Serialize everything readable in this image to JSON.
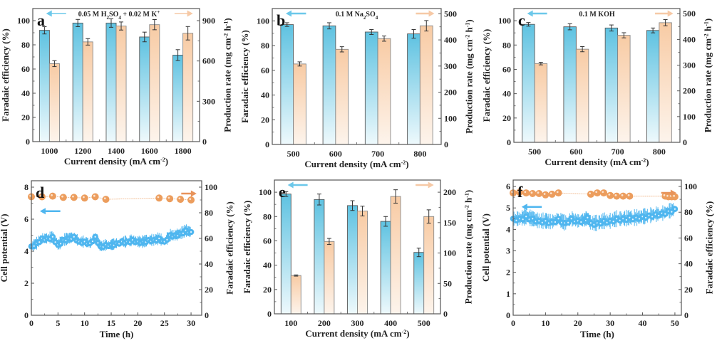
{
  "figure": {
    "colors": {
      "fe_bar_top": "#5ec2e1",
      "fe_bar_bottom": "#eef9fc",
      "pr_bar_top": "#f8cba4",
      "pr_bar_bottom": "#fdf4ec",
      "bar_edge": "#5a5a5a",
      "fe_arrow": "#6cc8ea",
      "pr_arrow": "#f6c9a6",
      "potential_dots": "#4fb6ef",
      "fe_dots": "#ec9d5d",
      "fe_arrow_dark": "#e8935a",
      "potential_arrow": "#4fb6ef"
    }
  },
  "chart_data": [
    {
      "panel": "a",
      "type": "bar",
      "annotation": "0.05 M H2SO4 + 0.02 M K+",
      "annotation_parts": [
        "0.05 M H",
        "2",
        "SO",
        "4",
        " + 0.02 M K",
        "+"
      ],
      "categories": [
        "1000",
        "1200",
        "1400",
        "1600",
        "1800"
      ],
      "xlabel": "Current density (mA cm-2)",
      "xlabel_main": "Current density (mA cm",
      "xlabel_sup": "-2",
      "xlabel_end": ")",
      "ylabel": "Faradaic efficiency (%)",
      "y2label": "Production rate (mg cm-2 h-1)",
      "y2label_parts": [
        "Production rate (mg cm",
        "-2",
        " h",
        "-1",
        ")"
      ],
      "ylim": [
        0,
        110
      ],
      "y2lim": [
        0,
        990
      ],
      "yticks": [
        0,
        20,
        40,
        60,
        80,
        100
      ],
      "y2ticks": [
        0,
        300,
        600,
        900
      ],
      "series": [
        {
          "name": "Faradaic efficiency",
          "axis": "left",
          "values": [
            92,
            98,
            98,
            86.5,
            71.5
          ],
          "errors": [
            3,
            3,
            3.5,
            4,
            4.5
          ]
        },
        {
          "name": "Production rate",
          "axis": "right",
          "values": [
            580,
            742,
            860,
            870,
            806
          ],
          "errors": [
            22,
            24,
            30,
            38,
            50
          ]
        }
      ]
    },
    {
      "panel": "b",
      "type": "bar",
      "annotation": "0.1 M Na2SO4",
      "annotation_parts": [
        "0.1 M Na",
        "2",
        "SO",
        "4",
        "",
        ""
      ],
      "categories": [
        "500",
        "600",
        "700",
        "800"
      ],
      "xlabel": "Current density (mA cm-2)",
      "xlabel_main": "Current density (mA cm",
      "xlabel_sup": "-2",
      "xlabel_end": ")",
      "ylabel": "Faradaic efficiency (%)",
      "y2label": "Production rate (mg cm-2 h-1)",
      "y2label_parts": [
        "Production rate (mg cm",
        "-2",
        " h",
        "-1",
        ")"
      ],
      "ylim": [
        0,
        110
      ],
      "y2lim": [
        0,
        520
      ],
      "yticks": [
        0,
        20,
        40,
        60,
        80,
        100
      ],
      "y2ticks": [
        0,
        100,
        200,
        300,
        400,
        500
      ],
      "series": [
        {
          "name": "Faradaic efficiency",
          "axis": "left",
          "values": [
            97,
            96,
            91,
            89.5
          ],
          "errors": [
            1.5,
            2.5,
            2,
            3.5
          ]
        },
        {
          "name": "Production rate",
          "axis": "right",
          "values": [
            308,
            364,
            405,
            454
          ],
          "errors": [
            8,
            10,
            10,
            20
          ]
        }
      ]
    },
    {
      "panel": "c",
      "type": "bar",
      "annotation": "0.1 M KOH",
      "annotation_parts": [
        "0.1 M KOH",
        "",
        "",
        "",
        "",
        ""
      ],
      "categories": [
        "500",
        "600",
        "700",
        "800"
      ],
      "xlabel": "Current density (mA cm-2)",
      "xlabel_main": "Current density (mA cm",
      "xlabel_sup": "-2",
      "xlabel_end": ")",
      "ylabel": "Faradaic efficiency (%)",
      "y2label": "Production rate (mg cm-2 h-1)",
      "y2label_parts": [
        "Production rate (mg cm",
        "-2",
        " h",
        "-1",
        ")"
      ],
      "ylim": [
        0,
        110
      ],
      "y2lim": [
        0,
        520
      ],
      "yticks": [
        0,
        20,
        40,
        60,
        80,
        100
      ],
      "y2ticks": [
        0,
        100,
        200,
        300,
        400,
        500
      ],
      "series": [
        {
          "name": "Faradaic efficiency",
          "axis": "left",
          "values": [
            97,
            95,
            94,
            92
          ],
          "errors": [
            1.5,
            2.5,
            2.5,
            2
          ]
        },
        {
          "name": "Production rate",
          "axis": "right",
          "values": [
            306,
            362,
            416,
            465
          ],
          "errors": [
            5,
            10,
            10,
            12
          ]
        }
      ]
    },
    {
      "panel": "d",
      "type": "scatter",
      "xlabel": "Time (h)",
      "ylabel": "Cell potential (V)",
      "y2label": "Faradaic efficiency (%)",
      "xlim": [
        0,
        32
      ],
      "ylim": [
        0,
        8.4
      ],
      "y2lim": [
        0,
        105
      ],
      "xticks": [
        0,
        5,
        10,
        15,
        20,
        25,
        30
      ],
      "yticks": [
        0,
        2,
        4,
        6,
        8
      ],
      "y2ticks": [
        0,
        20,
        40,
        60,
        80,
        100
      ],
      "series": [
        {
          "name": "Faradaic efficiency",
          "axis": "right",
          "x": [
            0,
            2,
            4,
            6,
            8,
            10,
            12,
            14,
            24,
            26,
            28,
            30
          ],
          "y": [
            92.5,
            92.5,
            93,
            92,
            92,
            91.5,
            92.5,
            90.5,
            91.5,
            91,
            90.5,
            90
          ]
        },
        {
          "name": "Cell potential",
          "axis": "left",
          "x": [
            0,
            1,
            2,
            3,
            4,
            5,
            6,
            7,
            8,
            9,
            10,
            11,
            12,
            13,
            14,
            15,
            16,
            17,
            18,
            19,
            20,
            21,
            22,
            23,
            24,
            25,
            26,
            27,
            28,
            29,
            30
          ],
          "y": [
            4.3,
            4.5,
            4.8,
            4.8,
            4.9,
            4.4,
            4.7,
            4.8,
            4.9,
            4.6,
            4.6,
            4.5,
            4.9,
            4.3,
            4.4,
            4.4,
            4.5,
            4.6,
            4.6,
            4.7,
            4.6,
            4.6,
            4.7,
            4.7,
            4.8,
            4.6,
            5.0,
            5.0,
            5.1,
            5.3,
            5.2
          ]
        }
      ]
    },
    {
      "panel": "e",
      "type": "bar",
      "categories": [
        "100",
        "200",
        "300",
        "400",
        "500"
      ],
      "xlabel": "Current density (mA cm-2)",
      "xlabel_main": "Current density (mA cm",
      "xlabel_sup": "-2",
      "xlabel_end": ")",
      "ylabel": "Faradaic efficiency (%)",
      "y2label": "Production rate (mg cm-2 h-1)",
      "y2label_parts": [
        "Production rate (mg cm",
        "-2",
        " h",
        "-1",
        ")"
      ],
      "ylim": [
        0,
        110
      ],
      "y2lim": [
        0,
        220
      ],
      "yticks": [
        0,
        20,
        40,
        60,
        80,
        100
      ],
      "y2ticks": [
        0,
        50,
        100,
        150,
        200
      ],
      "series": [
        {
          "name": "Faradaic efficiency",
          "axis": "left",
          "values": [
            98.5,
            94,
            89,
            76,
            50.5
          ],
          "errors": [
            2,
            4.5,
            4,
            4,
            3.5
          ]
        },
        {
          "name": "Production rate",
          "axis": "right",
          "values": [
            63,
            119,
            169,
            193,
            160
          ],
          "errors": [
            1,
            5,
            8,
            11,
            11
          ]
        }
      ]
    },
    {
      "panel": "f",
      "type": "scatter",
      "xlabel": "Time (h)",
      "ylabel": "Cell potential (V)",
      "y2label": "Faradaic efficiency (%)",
      "xlim": [
        0,
        52
      ],
      "ylim": [
        0,
        6.3
      ],
      "y2lim": [
        0,
        105
      ],
      "xticks": [
        0,
        10,
        20,
        30,
        40,
        50
      ],
      "yticks": [
        0,
        1,
        2,
        3,
        4,
        5,
        6
      ],
      "y2ticks": [
        0,
        20,
        40,
        60,
        80,
        100
      ],
      "series": [
        {
          "name": "Faradaic efficiency",
          "axis": "right",
          "x": [
            0,
            2,
            4,
            6,
            8,
            10,
            12,
            14,
            24,
            26,
            28,
            30,
            32,
            34,
            36,
            47,
            48,
            49,
            50
          ],
          "y": [
            95,
            95.5,
            95,
            94.5,
            94.5,
            93.5,
            94,
            95,
            94,
            95,
            95,
            93,
            92.5,
            92.5,
            92.5,
            92.5,
            92,
            92,
            92
          ]
        },
        {
          "name": "Cell potential",
          "axis": "left",
          "x": [
            0,
            2,
            4,
            6,
            8,
            10,
            12,
            14,
            16,
            18,
            20,
            22,
            23,
            24,
            26,
            28,
            30,
            32,
            34,
            36,
            38,
            40,
            42,
            44,
            46,
            48,
            50
          ],
          "y": [
            4.5,
            4.5,
            4.6,
            4.5,
            4.4,
            4.4,
            4.35,
            4.5,
            4.3,
            4.5,
            4.4,
            4.45,
            4.55,
            4.3,
            4.3,
            4.4,
            4.4,
            4.5,
            4.5,
            4.55,
            4.55,
            4.6,
            4.65,
            4.7,
            4.75,
            4.85,
            4.95
          ]
        }
      ]
    }
  ],
  "panel_letters": [
    "a",
    "b",
    "c",
    "d",
    "e",
    "f"
  ]
}
